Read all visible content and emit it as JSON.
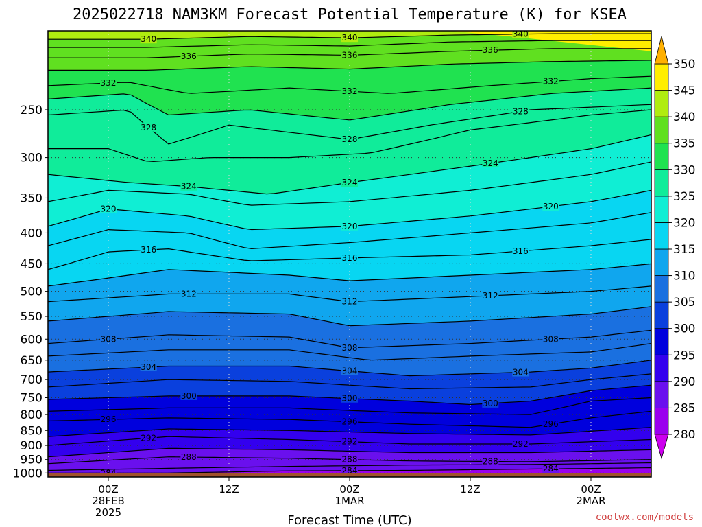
{
  "page": {
    "title": "2025022718 NAM3KM Forecast Potential Temperature (K) for KSEA",
    "credit": "coolwx.com/models"
  },
  "chart_data": {
    "type": "heatmap",
    "title": "2025022718 NAM3KM Forecast Potential Temperature (K) for KSEA",
    "xlabel": "Forecast Time (UTC)",
    "ylabel": "",
    "x_unit": "hours from 2025-02-27 18Z",
    "xlim": [
      0,
      60
    ],
    "ylim": [
      1015,
      185
    ],
    "y_scale": "log-pressure",
    "grid": true,
    "y_ticks": [
      250,
      300,
      350,
      400,
      450,
      500,
      550,
      600,
      650,
      700,
      750,
      800,
      850,
      900,
      950,
      1000
    ],
    "x_ticks": [
      {
        "x": 6,
        "lines": [
          "00Z",
          "28FEB",
          "2025"
        ]
      },
      {
        "x": 18,
        "lines": [
          "12Z"
        ]
      },
      {
        "x": 30,
        "lines": [
          "00Z",
          "1MAR"
        ]
      },
      {
        "x": 42,
        "lines": [
          "12Z"
        ]
      },
      {
        "x": 54,
        "lines": [
          "00Z",
          "2MAR"
        ]
      }
    ],
    "colorbar": {
      "levels": [
        280,
        285,
        290,
        295,
        300,
        305,
        310,
        315,
        320,
        325,
        330,
        335,
        340,
        345,
        350
      ],
      "colors": [
        "#cc00ee",
        "#9a00ee",
        "#6a10ee",
        "#3300ee",
        "#0000dd",
        "#0a40dd",
        "#1a70e0",
        "#10a6ee",
        "#08d6f2",
        "#10eed4",
        "#10ec9a",
        "#20e250",
        "#60e020",
        "#b0ec10",
        "#ffee00",
        "#ffb000"
      ]
    },
    "ground_color": "#a0522d",
    "contours": [
      {
        "theta": 284,
        "labeled": true,
        "points": [
          [
            12,
            1000
          ],
          [
            24,
            992
          ],
          [
            36,
            990
          ],
          [
            48,
            985
          ],
          [
            60,
            980
          ]
        ]
      },
      {
        "theta": 286,
        "labeled": false,
        "points": [
          [
            0,
            990
          ],
          [
            12,
            982
          ],
          [
            24,
            975
          ],
          [
            36,
            970
          ],
          [
            48,
            968
          ],
          [
            60,
            962
          ]
        ]
      },
      {
        "theta": 288,
        "labeled": true,
        "points": [
          [
            0,
            965
          ],
          [
            12,
            940
          ],
          [
            24,
            945
          ],
          [
            36,
            955
          ],
          [
            48,
            958
          ],
          [
            60,
            950
          ]
        ]
      },
      {
        "theta": 290,
        "labeled": false,
        "points": [
          [
            0,
            940
          ],
          [
            12,
            910
          ],
          [
            24,
            915
          ],
          [
            36,
            925
          ],
          [
            48,
            925
          ],
          [
            60,
            915
          ]
        ]
      },
      {
        "theta": 292,
        "labeled": true,
        "points": [
          [
            0,
            900
          ],
          [
            12,
            870
          ],
          [
            24,
            880
          ],
          [
            36,
            895
          ],
          [
            48,
            895
          ],
          [
            60,
            880
          ]
        ]
      },
      {
        "theta": 294,
        "labeled": false,
        "points": [
          [
            0,
            870
          ],
          [
            12,
            845
          ],
          [
            24,
            850
          ],
          [
            36,
            860
          ],
          [
            48,
            865
          ],
          [
            60,
            840
          ]
        ]
      },
      {
        "theta": 296,
        "labeled": true,
        "points": [
          [
            0,
            820
          ],
          [
            12,
            810
          ],
          [
            24,
            815
          ],
          [
            36,
            830
          ],
          [
            48,
            840
          ],
          [
            54,
            810
          ],
          [
            60,
            790
          ]
        ]
      },
      {
        "theta": 298,
        "labeled": false,
        "points": [
          [
            0,
            790
          ],
          [
            12,
            780
          ],
          [
            24,
            780
          ],
          [
            36,
            795
          ],
          [
            48,
            800
          ],
          [
            54,
            760
          ],
          [
            60,
            750
          ]
        ]
      },
      {
        "theta": 300,
        "labeled": true,
        "points": [
          [
            0,
            755
          ],
          [
            12,
            745
          ],
          [
            24,
            745
          ],
          [
            36,
            760
          ],
          [
            42,
            770
          ],
          [
            48,
            760
          ],
          [
            54,
            730
          ],
          [
            60,
            715
          ]
        ]
      },
      {
        "theta": 302,
        "labeled": false,
        "points": [
          [
            0,
            720
          ],
          [
            12,
            700
          ],
          [
            24,
            705
          ],
          [
            36,
            725
          ],
          [
            48,
            720
          ],
          [
            54,
            700
          ],
          [
            60,
            685
          ]
        ]
      },
      {
        "theta": 304,
        "labeled": true,
        "points": [
          [
            0,
            680
          ],
          [
            12,
            665
          ],
          [
            24,
            665
          ],
          [
            36,
            690
          ],
          [
            48,
            680
          ],
          [
            54,
            670
          ],
          [
            60,
            650
          ]
        ]
      },
      {
        "theta": 306,
        "labeled": false,
        "points": [
          [
            0,
            640
          ],
          [
            12,
            625
          ],
          [
            24,
            625
          ],
          [
            32,
            650
          ],
          [
            42,
            640
          ],
          [
            54,
            630
          ],
          [
            60,
            610
          ]
        ]
      },
      {
        "theta": 308,
        "labeled": true,
        "points": [
          [
            0,
            610
          ],
          [
            12,
            590
          ],
          [
            24,
            595
          ],
          [
            30,
            620
          ],
          [
            42,
            610
          ],
          [
            54,
            595
          ],
          [
            60,
            580
          ]
        ]
      },
      {
        "theta": 310,
        "labeled": false,
        "points": [
          [
            0,
            560
          ],
          [
            12,
            540
          ],
          [
            24,
            545
          ],
          [
            30,
            570
          ],
          [
            42,
            560
          ],
          [
            54,
            545
          ],
          [
            60,
            530
          ]
        ]
      },
      {
        "theta": 312,
        "labeled": true,
        "points": [
          [
            0,
            520
          ],
          [
            12,
            505
          ],
          [
            24,
            505
          ],
          [
            30,
            520
          ],
          [
            42,
            510
          ],
          [
            54,
            500
          ],
          [
            60,
            490
          ]
        ]
      },
      {
        "theta": 314,
        "labeled": false,
        "points": [
          [
            0,
            490
          ],
          [
            12,
            460
          ],
          [
            24,
            470
          ],
          [
            30,
            480
          ],
          [
            42,
            470
          ],
          [
            54,
            460
          ],
          [
            60,
            450
          ]
        ]
      },
      {
        "theta": 316,
        "labeled": true,
        "points": [
          [
            0,
            460
          ],
          [
            6,
            430
          ],
          [
            12,
            425
          ],
          [
            20,
            445
          ],
          [
            30,
            440
          ],
          [
            42,
            435
          ],
          [
            54,
            420
          ],
          [
            60,
            410
          ]
        ]
      },
      {
        "theta": 318,
        "labeled": false,
        "points": [
          [
            0,
            420
          ],
          [
            6,
            395
          ],
          [
            14,
            400
          ],
          [
            20,
            425
          ],
          [
            30,
            415
          ],
          [
            42,
            400
          ],
          [
            54,
            385
          ],
          [
            60,
            370
          ]
        ]
      },
      {
        "theta": 320,
        "labeled": true,
        "points": [
          [
            0,
            390
          ],
          [
            6,
            365
          ],
          [
            14,
            375
          ],
          [
            20,
            395
          ],
          [
            30,
            390
          ],
          [
            42,
            375
          ],
          [
            54,
            355
          ],
          [
            60,
            340
          ]
        ]
      },
      {
        "theta": 322,
        "labeled": false,
        "points": [
          [
            0,
            355
          ],
          [
            6,
            340
          ],
          [
            14,
            345
          ],
          [
            20,
            360
          ],
          [
            30,
            355
          ],
          [
            42,
            340
          ],
          [
            54,
            320
          ],
          [
            60,
            305
          ]
        ]
      },
      {
        "theta": 324,
        "labeled": true,
        "points": [
          [
            0,
            320
          ],
          [
            8,
            330
          ],
          [
            14,
            335
          ],
          [
            22,
            345
          ],
          [
            30,
            330
          ],
          [
            42,
            310
          ],
          [
            54,
            290
          ],
          [
            60,
            275
          ]
        ]
      },
      {
        "theta": 326,
        "labeled": false,
        "points": [
          [
            0,
            290
          ],
          [
            6,
            290
          ],
          [
            10,
            305
          ],
          [
            16,
            300
          ],
          [
            24,
            300
          ],
          [
            32,
            295
          ],
          [
            42,
            270
          ],
          [
            54,
            255
          ],
          [
            60,
            250
          ]
        ]
      },
      {
        "theta": 328,
        "labeled": true,
        "points": [
          [
            0,
            255
          ],
          [
            8,
            250
          ],
          [
            12,
            285
          ],
          [
            18,
            265
          ],
          [
            30,
            280
          ],
          [
            38,
            265
          ],
          [
            48,
            250
          ],
          [
            60,
            245
          ]
        ]
      },
      {
        "theta": 330,
        "labeled": false,
        "points": [
          [
            0,
            240
          ],
          [
            8,
            235
          ],
          [
            12,
            255
          ],
          [
            20,
            250
          ],
          [
            30,
            260
          ],
          [
            40,
            245
          ],
          [
            50,
            235
          ],
          [
            60,
            230
          ]
        ]
      },
      {
        "theta": 332,
        "labeled": true,
        "points": [
          [
            0,
            228
          ],
          [
            8,
            225
          ],
          [
            14,
            235
          ],
          [
            24,
            230
          ],
          [
            34,
            235
          ],
          [
            44,
            228
          ],
          [
            54,
            222
          ],
          [
            60,
            220
          ]
        ]
      },
      {
        "theta": 334,
        "labeled": false,
        "points": [
          [
            0,
            215
          ],
          [
            10,
            215
          ],
          [
            20,
            212
          ],
          [
            30,
            214
          ],
          [
            40,
            210
          ],
          [
            50,
            208
          ],
          [
            60,
            207
          ]
        ]
      },
      {
        "theta": 336,
        "labeled": true,
        "points": [
          [
            0,
            205
          ],
          [
            10,
            205
          ],
          [
            20,
            202
          ],
          [
            30,
            203
          ],
          [
            40,
            200
          ],
          [
            50,
            198
          ],
          [
            60,
            198
          ]
        ]
      },
      {
        "theta": 338,
        "labeled": false,
        "points": [
          [
            0,
            197
          ],
          [
            10,
            197
          ],
          [
            20,
            195
          ],
          [
            30,
            196
          ],
          [
            40,
            193
          ],
          [
            50,
            192
          ],
          [
            60,
            192
          ]
        ]
      },
      {
        "theta": 340,
        "labeled": true,
        "points": [
          [
            0,
            191
          ],
          [
            10,
            191
          ],
          [
            20,
            189
          ],
          [
            30,
            190
          ],
          [
            40,
            188
          ],
          [
            50,
            187
          ],
          [
            60,
            187
          ]
        ]
      }
    ]
  }
}
